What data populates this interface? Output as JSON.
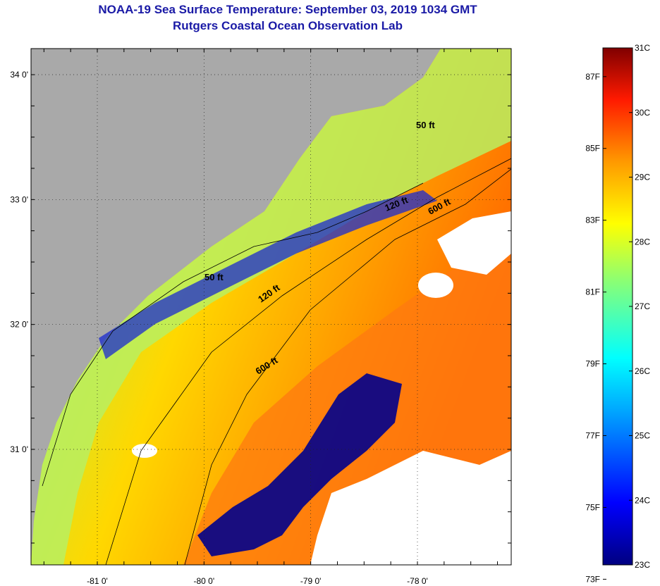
{
  "title": "NOAA-19 Sea Surface Temperature:  September 03, 2019 1034 GMT",
  "subtitle": "Rutgers Coastal Ocean Observation Lab",
  "lat_ticks": [
    {
      "value": 34,
      "label": "34 0'"
    },
    {
      "value": 33,
      "label": "33 0'"
    },
    {
      "value": 32,
      "label": "32 0'"
    },
    {
      "value": 31,
      "label": "31 0'"
    }
  ],
  "lon_ticks": [
    {
      "value": -81,
      "label": "-81 0'"
    },
    {
      "value": -80,
      "label": "-80 0'"
    },
    {
      "value": -79,
      "label": "-79 0'"
    },
    {
      "value": -78,
      "label": "-78 0'"
    }
  ],
  "contour_labels": [
    {
      "id": "c50a",
      "label": "50 ft"
    },
    {
      "id": "c50b",
      "label": "50 ft"
    },
    {
      "id": "c120a",
      "label": "120 ft"
    },
    {
      "id": "c120b",
      "label": "120 ft"
    },
    {
      "id": "c600a",
      "label": "600 ft"
    },
    {
      "id": "c600b",
      "label": "600 ft"
    }
  ],
  "colorbar": {
    "min_c": 23,
    "max_c": 31,
    "celsius": [
      "31C",
      "30C",
      "29C",
      "28C",
      "27C",
      "26C",
      "25C",
      "24C",
      "23C"
    ],
    "fahrenheit": [
      "87F",
      "85F",
      "83F",
      "81F",
      "79F",
      "77F",
      "75F",
      "73F"
    ]
  },
  "colors": {
    "land": "#a9a9a9",
    "cloud": "#ffffff",
    "title": "#1a1aa6"
  }
}
